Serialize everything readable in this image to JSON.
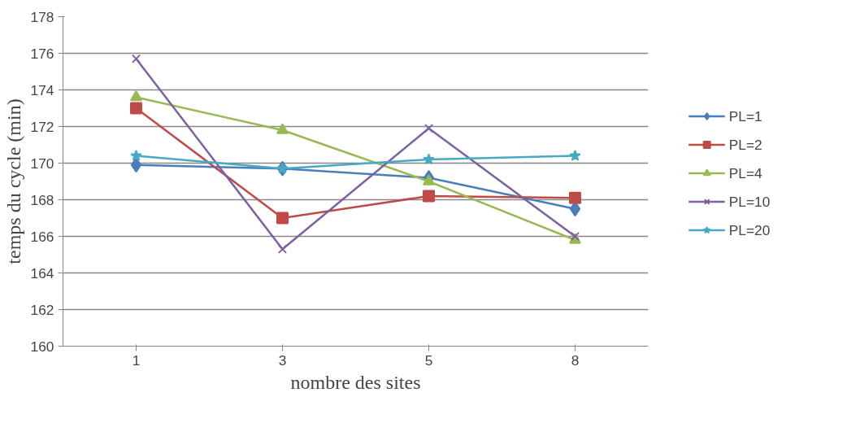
{
  "chart_data": {
    "type": "line",
    "xlabel": "nombre des sites",
    "ylabel": "temps du cycle (min)",
    "categories": [
      "1",
      "3",
      "5",
      "8"
    ],
    "ylim": [
      160,
      178
    ],
    "yticks": [
      160,
      162,
      164,
      166,
      168,
      170,
      172,
      174,
      176,
      178
    ],
    "grid": "y",
    "legend": "right",
    "series": [
      {
        "name": "PL=1",
        "color": "#4a7ebb",
        "marker": "diamond",
        "values": [
          169.9,
          169.7,
          169.2,
          167.5
        ]
      },
      {
        "name": "PL=2",
        "color": "#be4b48",
        "marker": "square",
        "values": [
          173.0,
          167.0,
          168.2,
          168.1
        ]
      },
      {
        "name": "PL=4",
        "color": "#98b954",
        "marker": "triangle",
        "values": [
          173.6,
          171.8,
          169.0,
          165.8
        ]
      },
      {
        "name": "PL=10",
        "color": "#7d60a0",
        "marker": "cross",
        "values": [
          175.7,
          165.3,
          171.9,
          166.0
        ]
      },
      {
        "name": "PL=20",
        "color": "#46aac5",
        "marker": "star",
        "values": [
          170.4,
          169.7,
          170.2,
          170.4
        ]
      }
    ]
  }
}
